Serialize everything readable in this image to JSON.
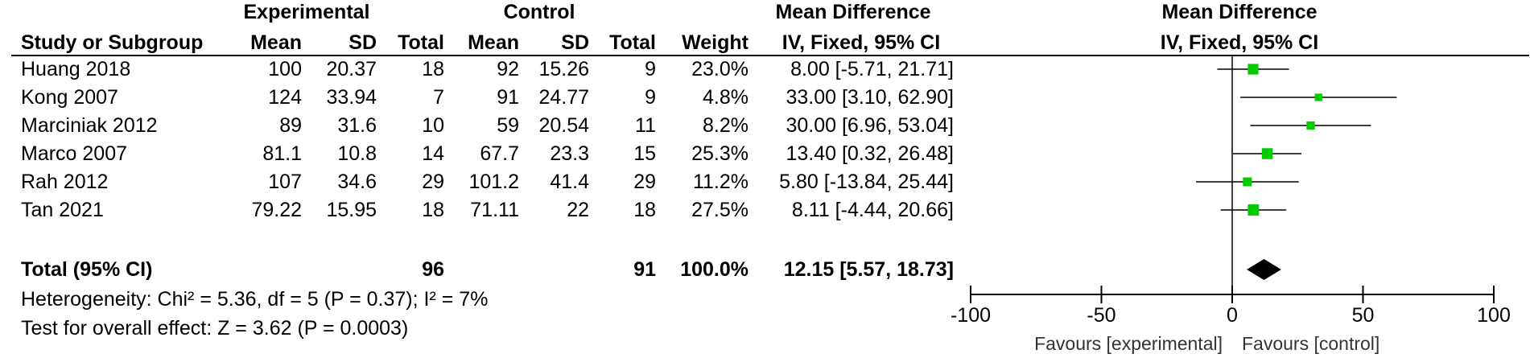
{
  "chart_data": {
    "type": "forest",
    "group_headers": {
      "experimental": "Experimental",
      "control": "Control",
      "mean_difference": "Mean Difference",
      "plot_mean_difference": "Mean Difference"
    },
    "columns": {
      "study": "Study or Subgroup",
      "exp_mean": "Mean",
      "exp_sd": "SD",
      "exp_total": "Total",
      "ctrl_mean": "Mean",
      "ctrl_sd": "SD",
      "ctrl_total": "Total",
      "weight": "Weight",
      "ci": "IV, Fixed, 95% CI",
      "plot_ci": "IV, Fixed, 95% CI"
    },
    "studies": [
      {
        "study": "Huang 2018",
        "exp_mean": "100",
        "exp_sd": "20.37",
        "exp_total": "18",
        "ctrl_mean": "92",
        "ctrl_sd": "15.26",
        "ctrl_total": "9",
        "weight": "23.0%",
        "ci_text": "8.00 [-5.71, 21.71]",
        "md": 8.0,
        "lo": -5.71,
        "hi": 21.71,
        "w": 23.0
      },
      {
        "study": "Kong 2007",
        "exp_mean": "124",
        "exp_sd": "33.94",
        "exp_total": "7",
        "ctrl_mean": "91",
        "ctrl_sd": "24.77",
        "ctrl_total": "9",
        "weight": "4.8%",
        "ci_text": "33.00 [3.10, 62.90]",
        "md": 33.0,
        "lo": 3.1,
        "hi": 62.9,
        "w": 4.8
      },
      {
        "study": "Marciniak 2012",
        "exp_mean": "89",
        "exp_sd": "31.6",
        "exp_total": "10",
        "ctrl_mean": "59",
        "ctrl_sd": "20.54",
        "ctrl_total": "11",
        "weight": "8.2%",
        "ci_text": "30.00 [6.96, 53.04]",
        "md": 30.0,
        "lo": 6.96,
        "hi": 53.04,
        "w": 8.2
      },
      {
        "study": "Marco 2007",
        "exp_mean": "81.1",
        "exp_sd": "10.8",
        "exp_total": "14",
        "ctrl_mean": "67.7",
        "ctrl_sd": "23.3",
        "ctrl_total": "15",
        "weight": "25.3%",
        "ci_text": "13.40 [0.32, 26.48]",
        "md": 13.4,
        "lo": 0.32,
        "hi": 26.48,
        "w": 25.3
      },
      {
        "study": "Rah 2012",
        "exp_mean": "107",
        "exp_sd": "34.6",
        "exp_total": "29",
        "ctrl_mean": "101.2",
        "ctrl_sd": "41.4",
        "ctrl_total": "29",
        "weight": "11.2%",
        "ci_text": "5.80 [-13.84, 25.44]",
        "md": 5.8,
        "lo": -13.84,
        "hi": 25.44,
        "w": 11.2
      },
      {
        "study": "Tan 2021",
        "exp_mean": "79.22",
        "exp_sd": "15.95",
        "exp_total": "18",
        "ctrl_mean": "71.11",
        "ctrl_sd": "22",
        "ctrl_total": "18",
        "weight": "27.5%",
        "ci_text": "8.11 [-4.44, 20.66]",
        "md": 8.11,
        "lo": -4.44,
        "hi": 20.66,
        "w": 27.5
      }
    ],
    "total": {
      "label": "Total (95% CI)",
      "exp_total": "96",
      "ctrl_total": "91",
      "weight": "100.0%",
      "ci_text": "12.15 [5.57, 18.73]",
      "md": 12.15,
      "lo": 5.57,
      "hi": 18.73
    },
    "heterogeneity": "Heterogeneity: Chi² = 5.36, df = 5 (P = 0.37); I² = 7%",
    "overall_effect": "Test for overall effect: Z = 3.62 (P = 0.0003)",
    "x_axis": {
      "range": [
        -100,
        100
      ],
      "ticks": [
        -100,
        -50,
        0,
        50,
        100
      ],
      "tick_labels": [
        "-100",
        "-50",
        "0",
        "50",
        "100"
      ],
      "favours_left": "Favours [experimental]",
      "favours_right": "Favours [control]"
    },
    "colors": {
      "marker": "#00cc00",
      "diamond": "#000000",
      "line": "#000000"
    }
  }
}
